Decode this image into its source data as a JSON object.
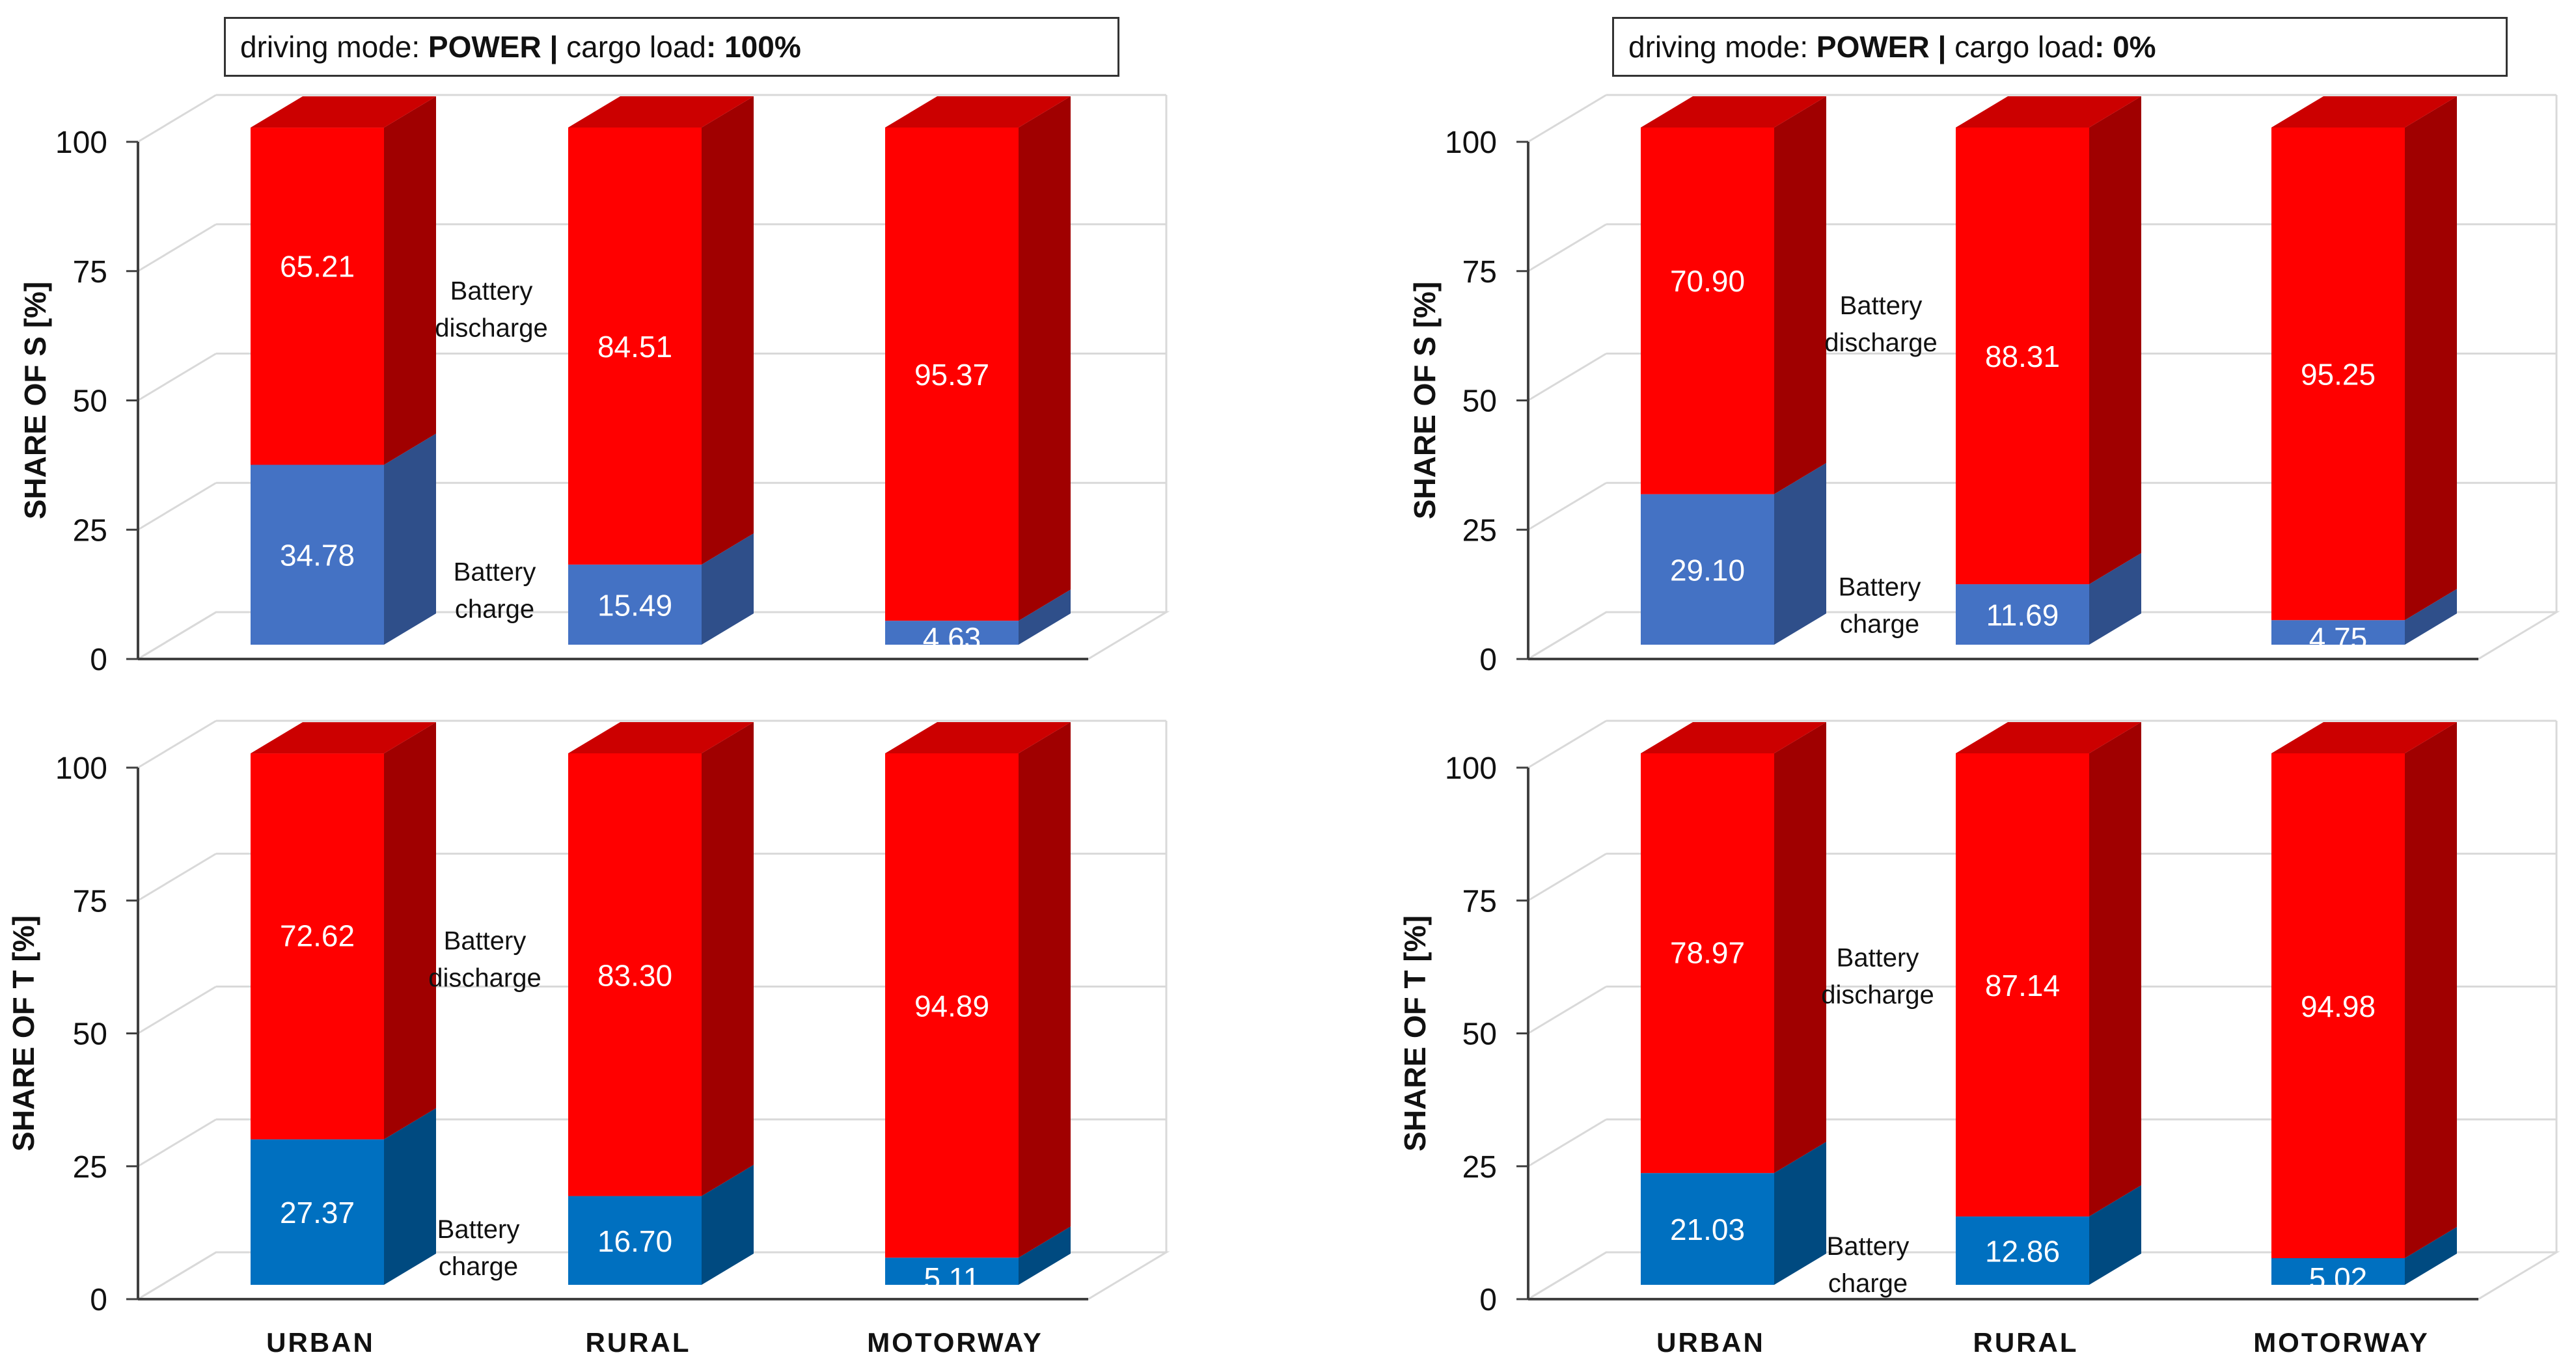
{
  "panel_titles": [
    {
      "mode_label": "driving mode: ",
      "mode_value": "POWER",
      "sep": " | ",
      "load_label": "cargo load",
      "load_value": ": 100%"
    },
    {
      "mode_label": "driving mode: ",
      "mode_value": "POWER",
      "sep": " | ",
      "load_label": "cargo load",
      "load_value": ": 0%"
    }
  ],
  "colors": {
    "discharge_front": "#ff0000",
    "discharge_top": "#cc0000",
    "discharge_side": "#a00000",
    "charge_s_front": "#4472c4",
    "charge_s_side": "#2f4f8a",
    "charge_t_front": "#0070c0",
    "charge_t_side": "#004a80",
    "grid": "#d9d9d9",
    "axis": "#404040"
  },
  "chart_data": [
    {
      "type": "bar",
      "stacked": true,
      "panel": "top-left",
      "categories": [
        "URBAN",
        "RURAL",
        "MOTORWAY"
      ],
      "ylabel": "SHARE OF S [%]",
      "ylim": [
        0,
        100
      ],
      "yticks": [
        0,
        25,
        50,
        75,
        100
      ],
      "show_xlabels": false,
      "series": [
        {
          "name": "Battery charge",
          "role": "charge",
          "variant": "s",
          "values": [
            34.78,
            15.49,
            4.63
          ],
          "labels": [
            "34.78",
            "15.49",
            "4.63"
          ]
        },
        {
          "name": "Battery discharge",
          "role": "discharge",
          "values": [
            65.21,
            84.51,
            95.37
          ],
          "labels": [
            "65.21",
            "84.51",
            "95.37"
          ]
        }
      ],
      "annotations": [
        {
          "lines": [
            "Battery",
            "discharge"
          ],
          "series": "discharge"
        },
        {
          "lines": [
            "Battery",
            "charge"
          ],
          "series": "charge"
        }
      ]
    },
    {
      "type": "bar",
      "stacked": true,
      "panel": "top-right",
      "categories": [
        "URBAN",
        "RURAL",
        "MOTORWAY"
      ],
      "ylabel": "SHARE OF S [%]",
      "ylim": [
        0,
        100
      ],
      "yticks": [
        0,
        25,
        50,
        75,
        100
      ],
      "show_xlabels": false,
      "series": [
        {
          "name": "Battery charge",
          "role": "charge",
          "variant": "s",
          "values": [
            29.1,
            11.69,
            4.75
          ],
          "labels": [
            "29.10",
            "11.69",
            "4.75"
          ]
        },
        {
          "name": "Battery discharge",
          "role": "discharge",
          "values": [
            70.9,
            88.31,
            95.25
          ],
          "labels": [
            "70.90",
            "88.31",
            "95.25"
          ]
        }
      ],
      "annotations": [
        {
          "lines": [
            "Battery",
            "discharge"
          ],
          "series": "discharge"
        },
        {
          "lines": [
            "Battery",
            "charge"
          ],
          "series": "charge"
        }
      ]
    },
    {
      "type": "bar",
      "stacked": true,
      "panel": "bottom-left",
      "categories": [
        "URBAN",
        "RURAL",
        "MOTORWAY"
      ],
      "ylabel": "SHARE OF T [%]",
      "ylim": [
        0,
        100
      ],
      "yticks": [
        0,
        25,
        50,
        75,
        100
      ],
      "show_xlabels": true,
      "series": [
        {
          "name": "Battery charge",
          "role": "charge",
          "variant": "t",
          "values": [
            27.37,
            16.7,
            5.11
          ],
          "labels": [
            "27.37",
            "16.70",
            "5.11"
          ]
        },
        {
          "name": "Battery discharge",
          "role": "discharge",
          "values": [
            72.62,
            83.3,
            94.89
          ],
          "labels": [
            "72.62",
            "83.30",
            "94.89"
          ]
        }
      ],
      "annotations": [
        {
          "lines": [
            "Battery",
            "discharge"
          ],
          "series": "discharge"
        },
        {
          "lines": [
            "Battery",
            "charge"
          ],
          "series": "charge"
        }
      ]
    },
    {
      "type": "bar",
      "stacked": true,
      "panel": "bottom-right",
      "categories": [
        "URBAN",
        "RURAL",
        "MOTORWAY"
      ],
      "ylabel": "SHARE OF T [%]",
      "ylim": [
        0,
        100
      ],
      "yticks": [
        0,
        25,
        50,
        75,
        100
      ],
      "show_xlabels": true,
      "series": [
        {
          "name": "Battery charge",
          "role": "charge",
          "variant": "t",
          "values": [
            21.03,
            12.86,
            5.02
          ],
          "labels": [
            "21.03",
            "12.86",
            "5.02"
          ]
        },
        {
          "name": "Battery discharge",
          "role": "discharge",
          "values": [
            78.97,
            87.14,
            94.98
          ],
          "labels": [
            "78.97",
            "87.14",
            "94.98"
          ]
        }
      ],
      "annotations": [
        {
          "lines": [
            "Battery",
            "discharge"
          ],
          "series": "discharge"
        },
        {
          "lines": [
            "Battery",
            "charge"
          ],
          "series": "charge"
        }
      ]
    }
  ]
}
